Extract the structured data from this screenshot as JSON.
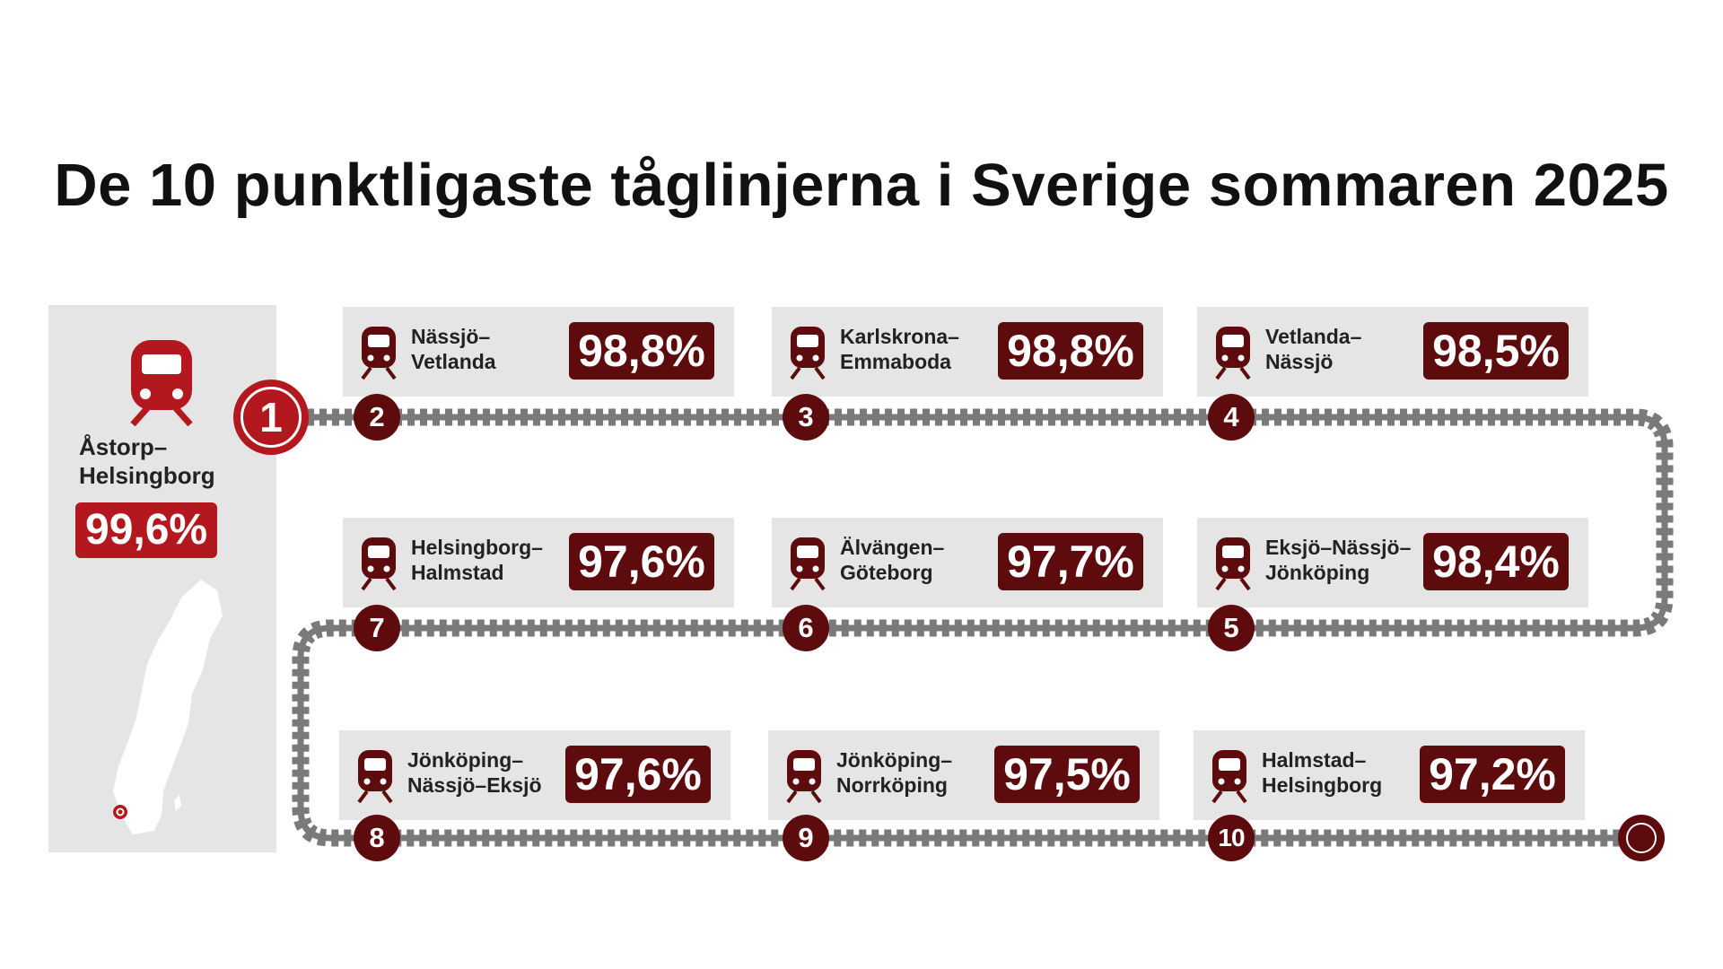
{
  "colors": {
    "accent_red": "#b3181f",
    "dark_red": "#5e0b0e",
    "card_gray": "#e5e5e5",
    "track_gray": "#7a7a7a"
  },
  "chart_data": {
    "type": "table",
    "title": "De 10 punktligaste tåglinjerna i Sverige sommaren 2025",
    "items": [
      {
        "rank": "1",
        "line": [
          "Åstorp–",
          "Helsingborg"
        ],
        "value": 99.6,
        "label": "99,6%"
      },
      {
        "rank": "2",
        "line": [
          "Nässjö–",
          "Vetlanda"
        ],
        "value": 98.8,
        "label": "98,8%"
      },
      {
        "rank": "3",
        "line": [
          "Karlskrona–",
          "Emmaboda"
        ],
        "value": 98.8,
        "label": "98,8%"
      },
      {
        "rank": "4",
        "line": [
          "Vetlanda–",
          "Nässjö"
        ],
        "value": 98.5,
        "label": "98,5%"
      },
      {
        "rank": "5",
        "line": [
          "Eksjö–Nässjö–",
          "Jönköping"
        ],
        "value": 98.4,
        "label": "98,4%"
      },
      {
        "rank": "6",
        "line": [
          "Älvängen–",
          "Göteborg"
        ],
        "value": 97.7,
        "label": "97,7%"
      },
      {
        "rank": "7",
        "line": [
          "Helsingborg–",
          "Halmstad"
        ],
        "value": 97.6,
        "label": "97,6%"
      },
      {
        "rank": "8",
        "line": [
          "Jönköping–",
          "Nässjö–Eksjö"
        ],
        "value": 97.6,
        "label": "97,6%"
      },
      {
        "rank": "9",
        "line": [
          "Jönköping–",
          "Norrköping"
        ],
        "value": 97.5,
        "label": "97,5%"
      },
      {
        "rank": "10",
        "line": [
          "Halmstad–",
          "Helsingborg"
        ],
        "value": 97.2,
        "label": "97,2%"
      }
    ]
  },
  "icons": {
    "train": "train-front-icon",
    "map": "sweden-map-icon",
    "location": "location-dot-icon"
  }
}
